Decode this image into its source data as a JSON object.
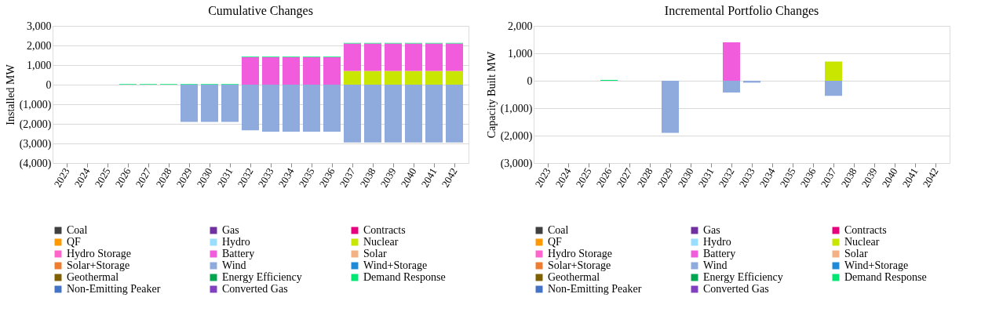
{
  "chart_data": [
    {
      "type": "bar",
      "title": "Cumulative Changes",
      "ylabel": "Installed MW",
      "stacked": true,
      "legend": "bottom",
      "grid": "y",
      "categories": [
        "2023",
        "2024",
        "2025",
        "2026",
        "2027",
        "2028",
        "2029",
        "2030",
        "2031",
        "2032",
        "2033",
        "2034",
        "2035",
        "2036",
        "2037",
        "2038",
        "2039",
        "2040",
        "2041",
        "2042"
      ],
      "ylim": [
        -4000,
        3000
      ],
      "yticks": [
        {
          "value": -4000,
          "label": "(4,000)"
        },
        {
          "value": -3000,
          "label": "(3,000)"
        },
        {
          "value": -2000,
          "label": "(2,000)"
        },
        {
          "value": -1000,
          "label": "(1,000)"
        },
        0,
        {
          "value": 1000,
          "label": "1,000"
        },
        {
          "value": 2000,
          "label": "2,000"
        },
        {
          "value": 3000,
          "label": "3,000"
        }
      ],
      "series": [
        {
          "name": "Coal",
          "color": "#404040",
          "values": [
            0,
            0,
            0,
            0,
            0,
            0,
            0,
            0,
            0,
            0,
            0,
            0,
            0,
            0,
            0,
            0,
            0,
            0,
            0,
            0
          ]
        },
        {
          "name": "Gas",
          "color": "#7030a0",
          "values": [
            0,
            0,
            0,
            0,
            0,
            0,
            0,
            0,
            0,
            0,
            0,
            0,
            0,
            0,
            0,
            0,
            0,
            0,
            0,
            0
          ]
        },
        {
          "name": "Contracts",
          "color": "#e6007e",
          "values": [
            0,
            0,
            0,
            0,
            0,
            0,
            0,
            0,
            0,
            0,
            0,
            0,
            0,
            0,
            0,
            0,
            0,
            0,
            0,
            0
          ]
        },
        {
          "name": "QF",
          "color": "#ff9900",
          "values": [
            0,
            0,
            0,
            0,
            0,
            0,
            0,
            0,
            0,
            0,
            0,
            0,
            0,
            0,
            0,
            0,
            0,
            0,
            0,
            0
          ]
        },
        {
          "name": "Hydro",
          "color": "#99ddff",
          "values": [
            0,
            0,
            0,
            0,
            0,
            0,
            0,
            0,
            0,
            0,
            0,
            0,
            0,
            0,
            0,
            0,
            0,
            0,
            0,
            0
          ]
        },
        {
          "name": "Nuclear",
          "color": "#c8e600",
          "values": [
            0,
            0,
            0,
            0,
            0,
            0,
            0,
            0,
            0,
            0,
            0,
            0,
            0,
            0,
            700,
            700,
            700,
            700,
            700,
            700
          ]
        },
        {
          "name": "Hydro Storage",
          "color": "#ff66cc",
          "values": [
            0,
            0,
            0,
            0,
            0,
            0,
            0,
            0,
            0,
            0,
            0,
            0,
            0,
            0,
            0,
            0,
            0,
            0,
            0,
            0
          ]
        },
        {
          "name": "Battery",
          "color": "#f05cdc",
          "values": [
            0,
            0,
            0,
            0,
            0,
            0,
            0,
            0,
            0,
            1400,
            1400,
            1400,
            1400,
            1400,
            1400,
            1400,
            1400,
            1400,
            1400,
            1400
          ]
        },
        {
          "name": "Solar",
          "color": "#f4b183",
          "values": [
            0,
            0,
            0,
            0,
            0,
            0,
            0,
            0,
            0,
            0,
            0,
            0,
            0,
            0,
            0,
            0,
            0,
            0,
            0,
            0
          ]
        },
        {
          "name": "Solar+Storage",
          "color": "#ed7d31",
          "values": [
            0,
            0,
            0,
            0,
            0,
            0,
            0,
            0,
            0,
            0,
            0,
            0,
            0,
            0,
            0,
            0,
            0,
            0,
            0,
            0
          ]
        },
        {
          "name": "Wind",
          "color": "#8faadc",
          "values": [
            0,
            0,
            0,
            0,
            0,
            0,
            -1900,
            -1900,
            -1900,
            -2330,
            -2400,
            -2400,
            -2400,
            -2400,
            -2950,
            -2950,
            -2950,
            -2950,
            -2950,
            -2950
          ]
        },
        {
          "name": "Wind+Storage",
          "color": "#1f8ad6",
          "values": [
            0,
            0,
            0,
            0,
            0,
            0,
            0,
            0,
            0,
            0,
            0,
            0,
            0,
            0,
            0,
            0,
            0,
            0,
            0,
            0
          ]
        },
        {
          "name": "Geothermal",
          "color": "#7f6000",
          "values": [
            0,
            0,
            0,
            0,
            0,
            0,
            0,
            0,
            0,
            0,
            0,
            0,
            0,
            0,
            0,
            0,
            0,
            0,
            0,
            0
          ]
        },
        {
          "name": "Energy Efficiency",
          "color": "#00a550",
          "values": [
            0,
            0,
            0,
            0,
            0,
            0,
            0,
            0,
            0,
            0,
            0,
            0,
            0,
            0,
            0,
            0,
            0,
            0,
            0,
            0
          ]
        },
        {
          "name": "Demand Response",
          "color": "#00e673",
          "values": [
            0,
            0,
            0,
            30,
            30,
            30,
            30,
            30,
            30,
            30,
            30,
            30,
            30,
            30,
            30,
            30,
            30,
            30,
            30,
            30
          ]
        },
        {
          "name": "Non-Emitting Peaker",
          "color": "#4472c4",
          "values": [
            0,
            0,
            0,
            0,
            0,
            0,
            0,
            0,
            0,
            0,
            0,
            0,
            0,
            0,
            0,
            0,
            0,
            0,
            0,
            0
          ]
        },
        {
          "name": "Converted Gas",
          "color": "#8040c0",
          "values": [
            0,
            0,
            0,
            0,
            0,
            0,
            0,
            0,
            0,
            0,
            0,
            0,
            0,
            0,
            0,
            0,
            0,
            0,
            0,
            0
          ]
        }
      ]
    },
    {
      "type": "bar",
      "title": "Incremental Portfolio Changes",
      "ylabel": "Capacity Built MW",
      "stacked": true,
      "legend": "bottom",
      "grid": "y",
      "categories": [
        "2023",
        "2024",
        "2025",
        "2026",
        "2027",
        "2028",
        "2029",
        "2030",
        "2031",
        "2032",
        "2033",
        "2034",
        "2035",
        "2036",
        "2037",
        "2038",
        "2039",
        "2040",
        "2041",
        "2042"
      ],
      "ylim": [
        -3000,
        2000
      ],
      "yticks": [
        {
          "value": -3000,
          "label": "(3,000)"
        },
        {
          "value": -2000,
          "label": "(2,000)"
        },
        {
          "value": -1000,
          "label": "(1,000)"
        },
        0,
        {
          "value": 1000,
          "label": "1,000"
        },
        {
          "value": 2000,
          "label": "2,000"
        }
      ],
      "series": [
        {
          "name": "Coal",
          "color": "#404040",
          "values": [
            0,
            0,
            0,
            0,
            0,
            0,
            0,
            0,
            0,
            0,
            0,
            0,
            0,
            0,
            0,
            0,
            0,
            0,
            0,
            0
          ]
        },
        {
          "name": "Gas",
          "color": "#7030a0",
          "values": [
            0,
            0,
            0,
            0,
            0,
            0,
            0,
            0,
            0,
            0,
            0,
            0,
            0,
            0,
            0,
            0,
            0,
            0,
            0,
            0
          ]
        },
        {
          "name": "Contracts",
          "color": "#e6007e",
          "values": [
            0,
            0,
            0,
            0,
            0,
            0,
            0,
            0,
            0,
            0,
            0,
            0,
            0,
            0,
            0,
            0,
            0,
            0,
            0,
            0
          ]
        },
        {
          "name": "QF",
          "color": "#ff9900",
          "values": [
            0,
            0,
            0,
            0,
            0,
            0,
            0,
            0,
            0,
            0,
            0,
            0,
            0,
            0,
            0,
            0,
            0,
            0,
            0,
            0
          ]
        },
        {
          "name": "Hydro",
          "color": "#99ddff",
          "values": [
            0,
            0,
            0,
            0,
            0,
            0,
            0,
            0,
            0,
            0,
            0,
            0,
            0,
            0,
            0,
            0,
            0,
            0,
            0,
            0
          ]
        },
        {
          "name": "Nuclear",
          "color": "#c8e600",
          "values": [
            0,
            0,
            0,
            0,
            0,
            0,
            0,
            0,
            0,
            0,
            0,
            0,
            0,
            0,
            700,
            0,
            0,
            0,
            0,
            0
          ]
        },
        {
          "name": "Hydro Storage",
          "color": "#ff66cc",
          "values": [
            0,
            0,
            0,
            0,
            0,
            0,
            0,
            0,
            0,
            0,
            0,
            0,
            0,
            0,
            0,
            0,
            0,
            0,
            0,
            0
          ]
        },
        {
          "name": "Battery",
          "color": "#f05cdc",
          "values": [
            0,
            0,
            0,
            0,
            0,
            0,
            0,
            0,
            0,
            1400,
            0,
            0,
            0,
            0,
            0,
            0,
            0,
            0,
            0,
            0
          ]
        },
        {
          "name": "Solar",
          "color": "#f4b183",
          "values": [
            0,
            0,
            0,
            0,
            0,
            0,
            0,
            0,
            0,
            0,
            0,
            0,
            0,
            0,
            0,
            0,
            0,
            0,
            0,
            0
          ]
        },
        {
          "name": "Solar+Storage",
          "color": "#ed7d31",
          "values": [
            0,
            0,
            0,
            0,
            0,
            0,
            0,
            0,
            0,
            0,
            0,
            0,
            0,
            0,
            0,
            0,
            0,
            0,
            0,
            0
          ]
        },
        {
          "name": "Wind",
          "color": "#8faadc",
          "values": [
            0,
            0,
            0,
            0,
            0,
            0,
            -1900,
            0,
            0,
            -430,
            -70,
            0,
            0,
            0,
            -550,
            0,
            0,
            0,
            0,
            0
          ]
        },
        {
          "name": "Wind+Storage",
          "color": "#1f8ad6",
          "values": [
            0,
            0,
            0,
            0,
            0,
            0,
            0,
            0,
            0,
            0,
            0,
            0,
            0,
            0,
            0,
            0,
            0,
            0,
            0,
            0
          ]
        },
        {
          "name": "Geothermal",
          "color": "#7f6000",
          "values": [
            0,
            0,
            0,
            0,
            0,
            0,
            0,
            0,
            0,
            0,
            0,
            0,
            0,
            0,
            0,
            0,
            0,
            0,
            0,
            0
          ]
        },
        {
          "name": "Energy Efficiency",
          "color": "#00a550",
          "values": [
            0,
            0,
            0,
            0,
            0,
            0,
            0,
            0,
            0,
            0,
            0,
            0,
            0,
            0,
            0,
            0,
            0,
            0,
            0,
            0
          ]
        },
        {
          "name": "Demand Response",
          "color": "#00e673",
          "values": [
            0,
            0,
            0,
            30,
            0,
            0,
            0,
            0,
            0,
            0,
            0,
            0,
            0,
            0,
            0,
            0,
            0,
            0,
            0,
            0
          ]
        },
        {
          "name": "Non-Emitting Peaker",
          "color": "#4472c4",
          "values": [
            0,
            0,
            0,
            0,
            0,
            0,
            0,
            0,
            0,
            0,
            0,
            0,
            0,
            0,
            0,
            0,
            0,
            0,
            0,
            0
          ]
        },
        {
          "name": "Converted Gas",
          "color": "#8040c0",
          "values": [
            0,
            0,
            0,
            0,
            0,
            0,
            0,
            0,
            0,
            0,
            0,
            0,
            0,
            0,
            0,
            0,
            0,
            0,
            0,
            0
          ]
        }
      ]
    }
  ]
}
